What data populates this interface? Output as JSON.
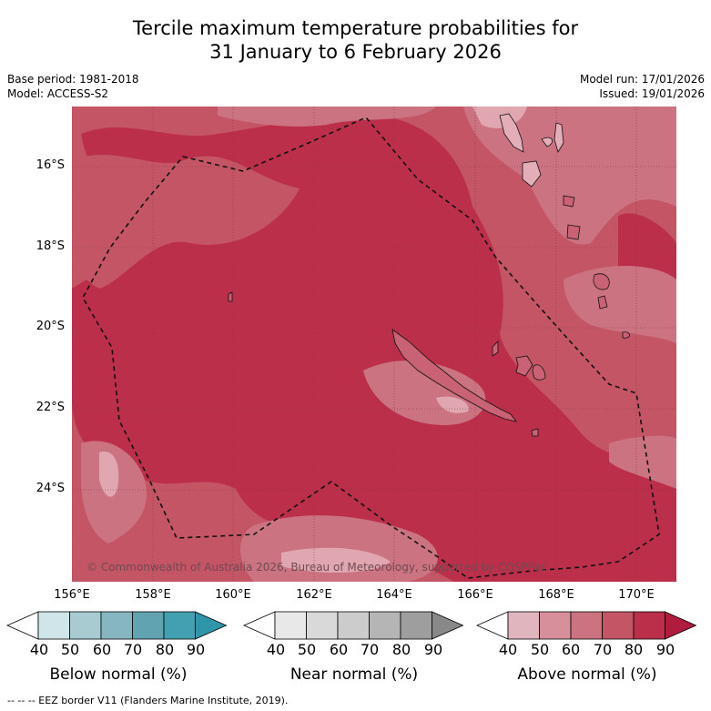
{
  "title_line1": "Tercile maximum temperature probabilities for",
  "title_line2": "31 January to 6 February 2026",
  "meta_left": [
    "Base period: 1981-2018",
    "Model: ACCESS-S2"
  ],
  "meta_right": [
    "Model run: 17/01/2026",
    "Issued: 19/01/2026"
  ],
  "lat_labels": [
    "16°S",
    "18°S",
    "20°S",
    "22°S",
    "24°S"
  ],
  "lon_labels": [
    "156°E",
    "158°E",
    "160°E",
    "162°E",
    "164°E",
    "166°E",
    "168°E",
    "170°E"
  ],
  "copyright": "© Commonwealth of Australia 2026, Bureau of Meteorology, supported by COSPPac",
  "colorbars": [
    {
      "title": "Below normal (%)",
      "ticks": [
        "40",
        "50",
        "60",
        "70",
        "80",
        "90"
      ],
      "colors": [
        "#ffffff",
        "#cfe5ea",
        "#a8cbd2",
        "#86b6c0",
        "#62a3b1",
        "#42a0b0",
        "#2e96a8"
      ]
    },
    {
      "title": "Near normal (%)",
      "ticks": [
        "40",
        "50",
        "60",
        "70",
        "80",
        "90"
      ],
      "colors": [
        "#ffffff",
        "#e8e8e8",
        "#d9d9d9",
        "#cccccc",
        "#b5b5b5",
        "#9e9e9e",
        "#888888"
      ]
    },
    {
      "title": "Above normal (%)",
      "ticks": [
        "40",
        "50",
        "60",
        "70",
        "80",
        "90"
      ],
      "colors": [
        "#ffffff",
        "#e0b5bd",
        "#d78f9b",
        "#cc7381",
        "#c45565",
        "#bc2f4a",
        "#b01c3e"
      ]
    }
  ],
  "footer": "--  --  -- EEZ border V11 (Flanders Marine Institute, 2019).",
  "map_colors": {
    "c60": "#e0a7b1",
    "c70": "#cc7381",
    "c80": "#c45565",
    "c90": "#bc2f4a"
  }
}
